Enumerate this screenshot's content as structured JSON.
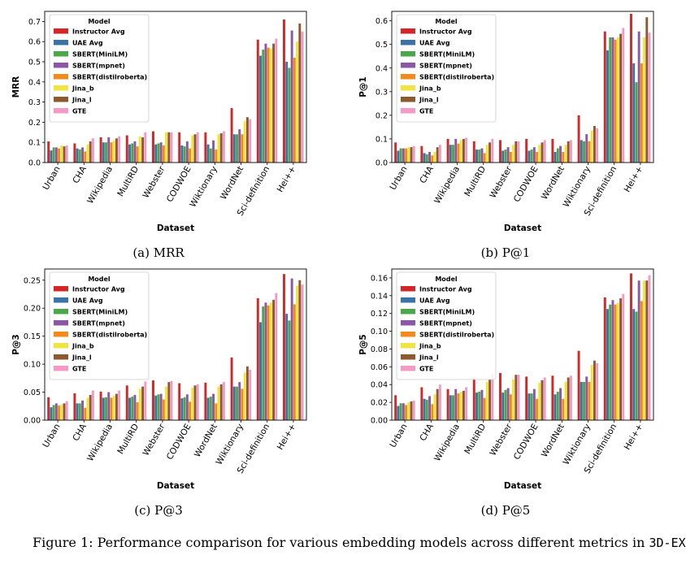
{
  "models": [
    "Instructor Avg",
    "UAE Avg",
    "SBERT(MiniLM)",
    "SBERT(mpnet)",
    "SBERT(distilroberta)",
    "Jina_b",
    "Jina_l",
    "GTE"
  ],
  "colors": [
    "#d62728",
    "#3b73a8",
    "#4aa84a",
    "#8a58a6",
    "#f28a1c",
    "#f0e442",
    "#8c5a2e",
    "#f39bc6"
  ],
  "legend_title": "Model",
  "xlabel": "Dataset",
  "figure_caption": {
    "prefix": "Figure 1: Performance comparison for various embedding models across different metrics in ",
    "dataset": "3D-EX"
  },
  "chart_data": [
    {
      "type": "bar",
      "caption": "(a) MRR",
      "ylabel": "MRR",
      "xlabel": "Dataset",
      "ylim": [
        0,
        0.75
      ],
      "yticks": [
        0.0,
        0.1,
        0.2,
        0.3,
        0.4,
        0.5,
        0.6,
        0.7
      ],
      "legend": "top-left",
      "categories": [
        "Urban",
        "CHA",
        "Wikipedia",
        "MultiRD",
        "Webster",
        "CODWOE",
        "Wiktionary",
        "WordNet",
        "Sci-definition",
        "Hei++"
      ],
      "series": [
        {
          "name": "Instructor Avg",
          "values": [
            0.105,
            0.095,
            0.125,
            0.135,
            0.155,
            0.15,
            0.15,
            0.27,
            0.61,
            0.71
          ]
        },
        {
          "name": "UAE Avg",
          "values": [
            0.06,
            0.07,
            0.1,
            0.09,
            0.09,
            0.085,
            0.09,
            0.14,
            0.53,
            0.5
          ]
        },
        {
          "name": "SBERT(MiniLM)",
          "values": [
            0.075,
            0.065,
            0.1,
            0.095,
            0.095,
            0.08,
            0.07,
            0.14,
            0.56,
            0.47
          ]
        },
        {
          "name": "SBERT(mpnet)",
          "values": [
            0.075,
            0.075,
            0.125,
            0.105,
            0.1,
            0.105,
            0.11,
            0.165,
            0.59,
            0.655
          ]
        },
        {
          "name": "SBERT(distilroberta)",
          "values": [
            0.07,
            0.055,
            0.1,
            0.08,
            0.085,
            0.07,
            0.065,
            0.14,
            0.57,
            0.52
          ]
        },
        {
          "name": "Jina_b",
          "values": [
            0.085,
            0.09,
            0.11,
            0.13,
            0.15,
            0.135,
            0.14,
            0.205,
            0.565,
            0.6
          ]
        },
        {
          "name": "Jina_l",
          "values": [
            0.08,
            0.105,
            0.12,
            0.125,
            0.15,
            0.14,
            0.145,
            0.225,
            0.59,
            0.69
          ]
        },
        {
          "name": "GTE",
          "values": [
            0.085,
            0.12,
            0.13,
            0.15,
            0.15,
            0.15,
            0.155,
            0.215,
            0.615,
            0.65
          ]
        }
      ]
    },
    {
      "type": "bar",
      "caption": "(b) P@1",
      "ylabel": "P@1",
      "xlabel": "Dataset",
      "ylim": [
        0,
        0.64
      ],
      "yticks": [
        0.0,
        0.1,
        0.2,
        0.3,
        0.4,
        0.5,
        0.6
      ],
      "legend": "top-left",
      "categories": [
        "Urban",
        "CHA",
        "Wikipedia",
        "MultiRD",
        "Webster",
        "CODWOE",
        "WordNet",
        "Wiktionary",
        "Sci-definition",
        "Hei++"
      ],
      "series": [
        {
          "name": "Instructor Avg",
          "values": [
            0.085,
            0.07,
            0.1,
            0.09,
            0.095,
            0.1,
            0.1,
            0.2,
            0.555,
            0.63
          ]
        },
        {
          "name": "UAE Avg",
          "values": [
            0.05,
            0.04,
            0.075,
            0.055,
            0.05,
            0.05,
            0.045,
            0.095,
            0.475,
            0.42
          ]
        },
        {
          "name": "SBERT(MiniLM)",
          "values": [
            0.06,
            0.035,
            0.075,
            0.055,
            0.055,
            0.055,
            0.06,
            0.09,
            0.53,
            0.34
          ]
        },
        {
          "name": "SBERT(mpnet)",
          "values": [
            0.06,
            0.045,
            0.1,
            0.06,
            0.065,
            0.065,
            0.07,
            0.12,
            0.53,
            0.555
          ]
        },
        {
          "name": "SBERT(distilroberta)",
          "values": [
            0.06,
            0.03,
            0.08,
            0.04,
            0.045,
            0.045,
            0.045,
            0.09,
            0.52,
            0.42
          ]
        },
        {
          "name": "Jina_b",
          "values": [
            0.065,
            0.045,
            0.095,
            0.075,
            0.075,
            0.075,
            0.075,
            0.135,
            0.53,
            0.53
          ]
        },
        {
          "name": "Jina_l",
          "values": [
            0.065,
            0.065,
            0.1,
            0.085,
            0.09,
            0.085,
            0.09,
            0.155,
            0.545,
            0.615
          ]
        },
        {
          "name": "GTE",
          "values": [
            0.07,
            0.075,
            0.105,
            0.1,
            0.09,
            0.095,
            0.095,
            0.145,
            0.57,
            0.55
          ]
        }
      ]
    },
    {
      "type": "bar",
      "caption": "(c) P@3",
      "ylabel": "P@3",
      "xlabel": "Dataset",
      "ylim": [
        0,
        0.27
      ],
      "yticks": [
        0.0,
        0.05,
        0.1,
        0.15,
        0.2,
        0.25
      ],
      "legend": "top-left",
      "categories": [
        "Urban",
        "CHA",
        "Wikipedia",
        "MultiRD",
        "Webster",
        "CODWOE",
        "WordNet",
        "Wiktionary",
        "Sci-definition",
        "Hei++"
      ],
      "series": [
        {
          "name": "Instructor Avg",
          "values": [
            0.041,
            0.048,
            0.051,
            0.062,
            0.071,
            0.066,
            0.067,
            0.112,
            0.218,
            0.261
          ]
        },
        {
          "name": "UAE Avg",
          "values": [
            0.023,
            0.03,
            0.04,
            0.04,
            0.044,
            0.039,
            0.04,
            0.06,
            0.175,
            0.19
          ]
        },
        {
          "name": "SBERT(MiniLM)",
          "values": [
            0.027,
            0.03,
            0.041,
            0.042,
            0.046,
            0.041,
            0.042,
            0.06,
            0.203,
            0.178
          ]
        },
        {
          "name": "SBERT(mpnet)",
          "values": [
            0.03,
            0.035,
            0.05,
            0.045,
            0.047,
            0.046,
            0.047,
            0.068,
            0.21,
            0.253
          ]
        },
        {
          "name": "SBERT(distilroberta)",
          "values": [
            0.026,
            0.022,
            0.04,
            0.032,
            0.037,
            0.033,
            0.03,
            0.056,
            0.205,
            0.207
          ]
        },
        {
          "name": "Jina_b",
          "values": [
            0.028,
            0.04,
            0.044,
            0.056,
            0.06,
            0.058,
            0.06,
            0.085,
            0.21,
            0.24
          ]
        },
        {
          "name": "Jina_l",
          "values": [
            0.03,
            0.045,
            0.047,
            0.06,
            0.068,
            0.062,
            0.064,
            0.096,
            0.215,
            0.25
          ]
        },
        {
          "name": "GTE",
          "values": [
            0.034,
            0.053,
            0.053,
            0.069,
            0.07,
            0.064,
            0.068,
            0.09,
            0.227,
            0.242
          ]
        }
      ]
    },
    {
      "type": "bar",
      "caption": "(d) P@5",
      "ylabel": "P@5",
      "xlabel": "Dataset",
      "ylim": [
        0,
        0.17
      ],
      "yticks": [
        0.0,
        0.02,
        0.04,
        0.06,
        0.08,
        0.1,
        0.12,
        0.14,
        0.16
      ],
      "legend": "top-left",
      "categories": [
        "Urban",
        "CHA",
        "Wikipedia",
        "MultiRD",
        "Webster",
        "CODWOE",
        "WordNet",
        "Wiktionary",
        "Sci-definition",
        "Hei++"
      ],
      "series": [
        {
          "name": "Instructor Avg",
          "values": [
            0.028,
            0.037,
            0.035,
            0.047,
            0.053,
            0.049,
            0.05,
            0.078,
            0.138,
            0.165
          ]
        },
        {
          "name": "UAE Avg",
          "values": [
            0.016,
            0.024,
            0.028,
            0.031,
            0.031,
            0.03,
            0.029,
            0.043,
            0.125,
            0.125
          ]
        },
        {
          "name": "SBERT(MiniLM)",
          "values": [
            0.019,
            0.023,
            0.028,
            0.032,
            0.034,
            0.03,
            0.032,
            0.043,
            0.13,
            0.122
          ]
        },
        {
          "name": "SBERT(mpnet)",
          "values": [
            0.019,
            0.027,
            0.035,
            0.034,
            0.036,
            0.035,
            0.036,
            0.049,
            0.135,
            0.157
          ]
        },
        {
          "name": "SBERT(distilroberta)",
          "values": [
            0.017,
            0.018,
            0.03,
            0.025,
            0.029,
            0.024,
            0.024,
            0.043,
            0.13,
            0.134
          ]
        },
        {
          "name": "Jina_b",
          "values": [
            0.02,
            0.029,
            0.032,
            0.043,
            0.046,
            0.042,
            0.043,
            0.062,
            0.132,
            0.157
          ]
        },
        {
          "name": "Jina_l",
          "values": [
            0.021,
            0.035,
            0.033,
            0.046,
            0.051,
            0.045,
            0.048,
            0.067,
            0.137,
            0.157
          ]
        },
        {
          "name": "GTE",
          "values": [
            0.022,
            0.04,
            0.037,
            0.052,
            0.051,
            0.048,
            0.05,
            0.064,
            0.142,
            0.163
          ]
        }
      ]
    }
  ]
}
